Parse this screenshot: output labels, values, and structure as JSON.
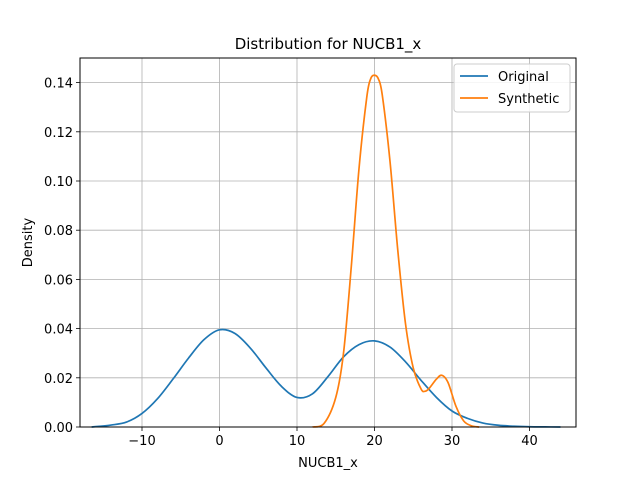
{
  "chart_data": {
    "type": "line",
    "title": "Distribution for NUCB1_x",
    "xlabel": "NUCB1_x",
    "ylabel": "Density",
    "xlim": [
      -18,
      46
    ],
    "ylim": [
      0,
      0.15
    ],
    "xticks": [
      -10,
      0,
      10,
      20,
      30,
      40
    ],
    "xtick_labels": [
      "−10",
      "0",
      "10",
      "20",
      "30",
      "40"
    ],
    "yticks": [
      0,
      0.02,
      0.04,
      0.06,
      0.08,
      0.1,
      0.12,
      0.14
    ],
    "ytick_labels": [
      "0.00",
      "0.02",
      "0.04",
      "0.06",
      "0.08",
      "0.10",
      "0.12",
      "0.14"
    ],
    "grid": true,
    "legend_position": "top-right",
    "series": [
      {
        "name": "Original",
        "color": "#1f77b4",
        "x": [
          -16.5,
          -14,
          -12,
          -10,
          -8,
          -6,
          -4,
          -2,
          0,
          2,
          4,
          6,
          8,
          10,
          12,
          14,
          16,
          18,
          20,
          22,
          24,
          26,
          28,
          30,
          32,
          34,
          36,
          38,
          40,
          42,
          44
        ],
        "y": [
          0.0,
          0.0008,
          0.002,
          0.0055,
          0.0115,
          0.0195,
          0.028,
          0.0355,
          0.0395,
          0.038,
          0.032,
          0.024,
          0.0165,
          0.012,
          0.0135,
          0.0205,
          0.0285,
          0.0335,
          0.035,
          0.0325,
          0.0265,
          0.019,
          0.012,
          0.0065,
          0.0035,
          0.0016,
          0.0007,
          0.0003,
          0.0001,
          5e-05,
          0.0
        ]
      },
      {
        "name": "Synthetic",
        "color": "#ff7f0e",
        "x": [
          12,
          13.5,
          15,
          16,
          17,
          18,
          19,
          19.5,
          20,
          20.5,
          21,
          22,
          23,
          24,
          25,
          26,
          26.5,
          27,
          28,
          28.7,
          29.5,
          30.5,
          31.5,
          32.5,
          33.5
        ],
        "y": [
          0.0,
          0.0015,
          0.012,
          0.03,
          0.065,
          0.105,
          0.134,
          0.1415,
          0.143,
          0.1415,
          0.135,
          0.108,
          0.072,
          0.042,
          0.024,
          0.0155,
          0.0145,
          0.0155,
          0.0195,
          0.021,
          0.018,
          0.0085,
          0.0025,
          0.0005,
          0.0
        ]
      }
    ]
  }
}
